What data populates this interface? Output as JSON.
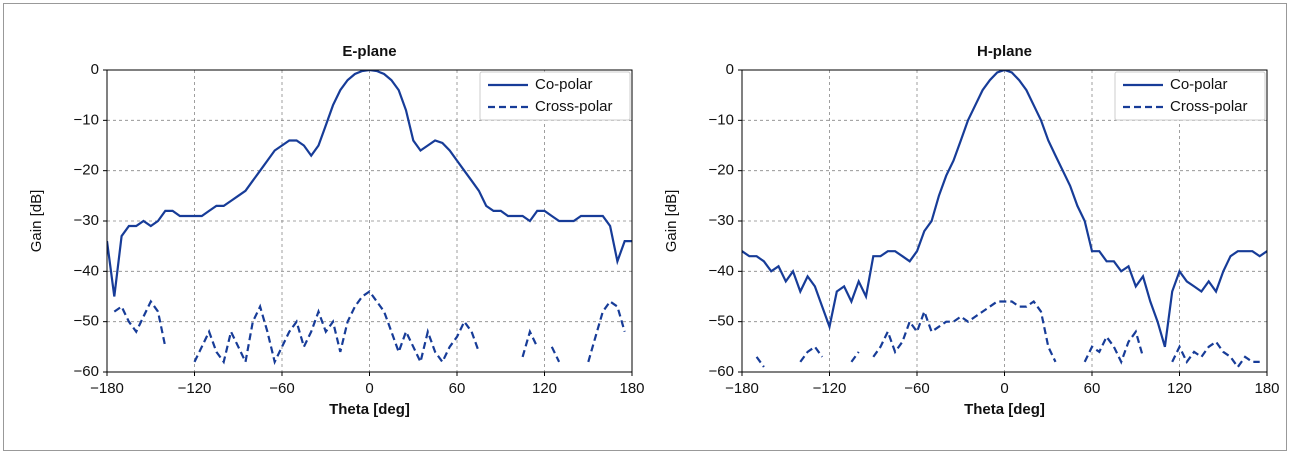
{
  "chart_data": [
    {
      "type": "line",
      "title": "E-plane",
      "xlabel": "Theta [deg]",
      "ylabel": "Gain [dB]",
      "x": [
        -180,
        -175,
        -170,
        -165,
        -160,
        -155,
        -150,
        -145,
        -140,
        -135,
        -130,
        -125,
        -120,
        -115,
        -110,
        -105,
        -100,
        -95,
        -90,
        -85,
        -80,
        -75,
        -70,
        -65,
        -60,
        -55,
        -50,
        -45,
        -40,
        -35,
        -30,
        -25,
        -20,
        -15,
        -10,
        -5,
        0,
        5,
        10,
        15,
        20,
        25,
        30,
        35,
        40,
        45,
        50,
        55,
        60,
        65,
        70,
        75,
        80,
        85,
        90,
        95,
        100,
        105,
        110,
        115,
        120,
        125,
        130,
        135,
        140,
        145,
        150,
        155,
        160,
        165,
        170,
        175,
        180
      ],
      "series": [
        {
          "name": "Co-polar",
          "color": "#173c98",
          "linestyle": "solid",
          "values": [
            -34,
            -45,
            -33,
            -31,
            -31,
            -30,
            -31,
            -30,
            -28,
            -28,
            -29,
            -29,
            -29,
            -29,
            -28,
            -27,
            -27,
            -26,
            -25,
            -24,
            -22,
            -20,
            -18,
            -16,
            -15,
            -14,
            -14,
            -15,
            -17,
            -15,
            -11,
            -7,
            -4,
            -2,
            -0.8,
            -0.2,
            0,
            -0.2,
            -0.8,
            -2,
            -4,
            -8,
            -14,
            -16,
            -15,
            -14,
            -14.5,
            -16,
            -18,
            -20,
            -22,
            -24,
            -27,
            -28,
            -28,
            -29,
            -29,
            -29,
            -30,
            -28,
            -28,
            -29,
            -30,
            -30,
            -30,
            -29,
            -29,
            -29,
            -29,
            -31,
            -38,
            -34,
            -34
          ]
        },
        {
          "name": "Cross-polar",
          "color": "#173c98",
          "linestyle": "dashed",
          "values": [
            null,
            -48,
            -47,
            -50,
            -52,
            -49,
            -46,
            -48,
            -55,
            null,
            null,
            null,
            -58,
            -55,
            -52,
            -56,
            -58,
            -52,
            -55,
            -58,
            -50,
            -47,
            -52,
            -58,
            -55,
            -52,
            -50,
            -55,
            -52,
            -48,
            -52,
            -50,
            -56,
            -50,
            -47,
            -45,
            -44,
            -46,
            -48,
            -52,
            -56,
            -52,
            -55,
            -58,
            -52,
            -56,
            -58,
            -55,
            -53,
            -50,
            -52,
            -56,
            null,
            null,
            null,
            null,
            null,
            -57,
            -52,
            -55,
            null,
            -55,
            -58,
            null,
            null,
            null,
            -58,
            -53,
            -48,
            -46,
            -47,
            -52,
            null
          ]
        }
      ],
      "xlim": [
        -180,
        180
      ],
      "xticks": [
        {
          "value": -180,
          "label": "−180"
        },
        {
          "value": -120,
          "label": "−120"
        },
        {
          "value": -60,
          "label": "−60"
        },
        0,
        60,
        120,
        180
      ],
      "ylim": [
        -60,
        0
      ],
      "yticks": [
        {
          "value": -60,
          "label": "−60"
        },
        {
          "value": -50,
          "label": "−50"
        },
        {
          "value": -40,
          "label": "−40"
        },
        {
          "value": -30,
          "label": "−30"
        },
        {
          "value": -20,
          "label": "−20"
        },
        {
          "value": -10,
          "label": "−10"
        },
        0
      ],
      "grid": true,
      "legend": "upper right"
    },
    {
      "type": "line",
      "title": "H-plane",
      "xlabel": "Theta [deg]",
      "ylabel": "Gain [dB]",
      "x": [
        -180,
        -175,
        -170,
        -165,
        -160,
        -155,
        -150,
        -145,
        -140,
        -135,
        -130,
        -125,
        -120,
        -115,
        -110,
        -105,
        -100,
        -95,
        -90,
        -85,
        -80,
        -75,
        -70,
        -65,
        -60,
        -55,
        -50,
        -45,
        -40,
        -35,
        -30,
        -25,
        -20,
        -15,
        -10,
        -5,
        0,
        5,
        10,
        15,
        20,
        25,
        30,
        35,
        40,
        45,
        50,
        55,
        60,
        65,
        70,
        75,
        80,
        85,
        90,
        95,
        100,
        105,
        110,
        115,
        120,
        125,
        130,
        135,
        140,
        145,
        150,
        155,
        160,
        165,
        170,
        175,
        180
      ],
      "series": [
        {
          "name": "Co-polar",
          "color": "#173c98",
          "linestyle": "solid",
          "values": [
            -36,
            -37,
            -37,
            -38,
            -40,
            -39,
            -42,
            -40,
            -44,
            -41,
            -43,
            -47,
            -51,
            -44,
            -43,
            -46,
            -42,
            -45,
            -37,
            -37,
            -36,
            -36,
            -37,
            -38,
            -36,
            -32,
            -30,
            -25,
            -21,
            -18,
            -14,
            -10,
            -7,
            -4,
            -2,
            -0.5,
            0,
            -0.5,
            -2,
            -4,
            -7,
            -10,
            -14,
            -17,
            -20,
            -23,
            -27,
            -30,
            -36,
            -36,
            -38,
            -38,
            -40,
            -39,
            -43,
            -41,
            -46,
            -50,
            -55,
            -44,
            -40,
            -42,
            -43,
            -44,
            -42,
            -44,
            -40,
            -37,
            -36,
            -36,
            -36,
            -37,
            -36
          ]
        },
        {
          "name": "Cross-polar",
          "color": "#173c98",
          "linestyle": "dashed",
          "values": [
            null,
            null,
            -57,
            -59,
            null,
            null,
            null,
            null,
            -58,
            -56,
            -55,
            -57,
            null,
            -59,
            null,
            -58,
            -56,
            null,
            -57,
            -55,
            -52,
            -56,
            -54,
            -50,
            -52,
            -48,
            -52,
            -51,
            -50,
            -50,
            -49,
            -50,
            -49,
            -48,
            -47,
            -46,
            -46,
            -46,
            -47,
            -47,
            -46,
            -48,
            -55,
            -58,
            null,
            null,
            null,
            -58,
            -55,
            -56,
            -53,
            -55,
            -58,
            -54,
            -52,
            -57,
            null,
            null,
            null,
            -58,
            -55,
            -58,
            -56,
            -57,
            -55,
            -54,
            -56,
            -57,
            -59,
            -57,
            -58,
            -58,
            null
          ]
        }
      ],
      "xlim": [
        -180,
        180
      ],
      "xticks": [
        {
          "value": -180,
          "label": "−180"
        },
        {
          "value": -120,
          "label": "−120"
        },
        {
          "value": -60,
          "label": "−60"
        },
        0,
        60,
        120,
        180
      ],
      "ylim": [
        -60,
        0
      ],
      "yticks": [
        {
          "value": -60,
          "label": "−60"
        },
        {
          "value": -50,
          "label": "−50"
        },
        {
          "value": -40,
          "label": "−40"
        },
        {
          "value": -30,
          "label": "−30"
        },
        {
          "value": -20,
          "label": "−20"
        },
        {
          "value": -10,
          "label": "−10"
        },
        0
      ],
      "grid": true,
      "legend": "upper right"
    }
  ]
}
